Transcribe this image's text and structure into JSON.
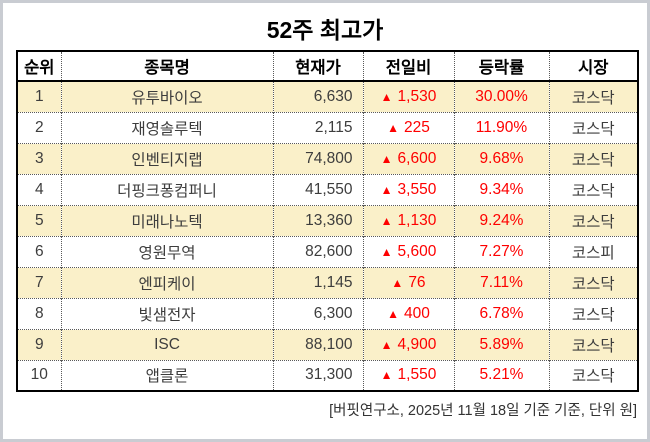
{
  "title": "52주 최고가",
  "colors": {
    "row_highlight": "#FAF0C9",
    "up_red": "#FE0000",
    "text_dark": "#3D3D3D",
    "frame_gray": "#C9CCD2",
    "border_black": "#000000"
  },
  "table": {
    "up_icon": "▲",
    "columns": [
      {
        "key": "rank",
        "label": "순위"
      },
      {
        "key": "name",
        "label": "종목명"
      },
      {
        "key": "price",
        "label": "현재가"
      },
      {
        "key": "change",
        "label": "전일비"
      },
      {
        "key": "rate",
        "label": "등락률"
      },
      {
        "key": "market",
        "label": "시장"
      }
    ],
    "rows": [
      {
        "rank": "1",
        "name": "유투바이오",
        "price": "6,630",
        "change": "1,530",
        "rate": "30.00%",
        "market": "코스닥",
        "highlight": true
      },
      {
        "rank": "2",
        "name": "재영솔루텍",
        "price": "2,115",
        "change": "225",
        "rate": "11.90%",
        "market": "코스닥",
        "highlight": false
      },
      {
        "rank": "3",
        "name": "인벤티지랩",
        "price": "74,800",
        "change": "6,600",
        "rate": "9.68%",
        "market": "코스닥",
        "highlight": true
      },
      {
        "rank": "4",
        "name": "더핑크퐁컴퍼니",
        "price": "41,550",
        "change": "3,550",
        "rate": "9.34%",
        "market": "코스닥",
        "highlight": false
      },
      {
        "rank": "5",
        "name": "미래나노텍",
        "price": "13,360",
        "change": "1,130",
        "rate": "9.24%",
        "market": "코스닥",
        "highlight": true
      },
      {
        "rank": "6",
        "name": "영원무역",
        "price": "82,600",
        "change": "5,600",
        "rate": "7.27%",
        "market": "코스피",
        "highlight": false
      },
      {
        "rank": "7",
        "name": "엔피케이",
        "price": "1,145",
        "change": "76",
        "rate": "7.11%",
        "market": "코스닥",
        "highlight": true
      },
      {
        "rank": "8",
        "name": "빛샘전자",
        "price": "6,300",
        "change": "400",
        "rate": "6.78%",
        "market": "코스닥",
        "highlight": false
      },
      {
        "rank": "9",
        "name": "ISC",
        "price": "88,100",
        "change": "4,900",
        "rate": "5.89%",
        "market": "코스닥",
        "highlight": true
      },
      {
        "rank": "10",
        "name": "앱클론",
        "price": "31,300",
        "change": "1,550",
        "rate": "5.21%",
        "market": "코스닥",
        "highlight": false
      }
    ]
  },
  "footer": "[버핏연구소, 2025년 11월 18일 기준 기준, 단위 원]",
  "chart_data": {
    "type": "table",
    "title": "52주 최고가",
    "columns": [
      "순위",
      "종목명",
      "현재가",
      "전일비",
      "등락률",
      "시장"
    ],
    "rows": [
      [
        "1",
        "유투바이오",
        "6,630",
        "▲ 1,530",
        "30.00%",
        "코스닥"
      ],
      [
        "2",
        "재영솔루텍",
        "2,115",
        "▲ 225",
        "11.90%",
        "코스닥"
      ],
      [
        "3",
        "인벤티지랩",
        "74,800",
        "▲ 6,600",
        "9.68%",
        "코스닥"
      ],
      [
        "4",
        "더핑크퐁컴퍼니",
        "41,550",
        "▲ 3,550",
        "9.34%",
        "코스닥"
      ],
      [
        "5",
        "미래나노텍",
        "13,360",
        "▲ 1,130",
        "9.24%",
        "코스닥"
      ],
      [
        "6",
        "영원무역",
        "82,600",
        "▲ 5,600",
        "7.27%",
        "코스피"
      ],
      [
        "7",
        "엔피케이",
        "1,145",
        "▲ 76",
        "7.11%",
        "코스닥"
      ],
      [
        "8",
        "빛샘전자",
        "6,300",
        "▲ 400",
        "6.78%",
        "코스닥"
      ],
      [
        "9",
        "ISC",
        "88,100",
        "▲ 4,900",
        "5.89%",
        "코스닥"
      ],
      [
        "10",
        "앱클론",
        "31,300",
        "▲ 1,550",
        "5.21%",
        "코스닥"
      ]
    ],
    "notes": "[버핏연구소, 2025년 11월 18일 기준 기준, 단위 원]",
    "up_direction_color": "#FE0000"
  }
}
